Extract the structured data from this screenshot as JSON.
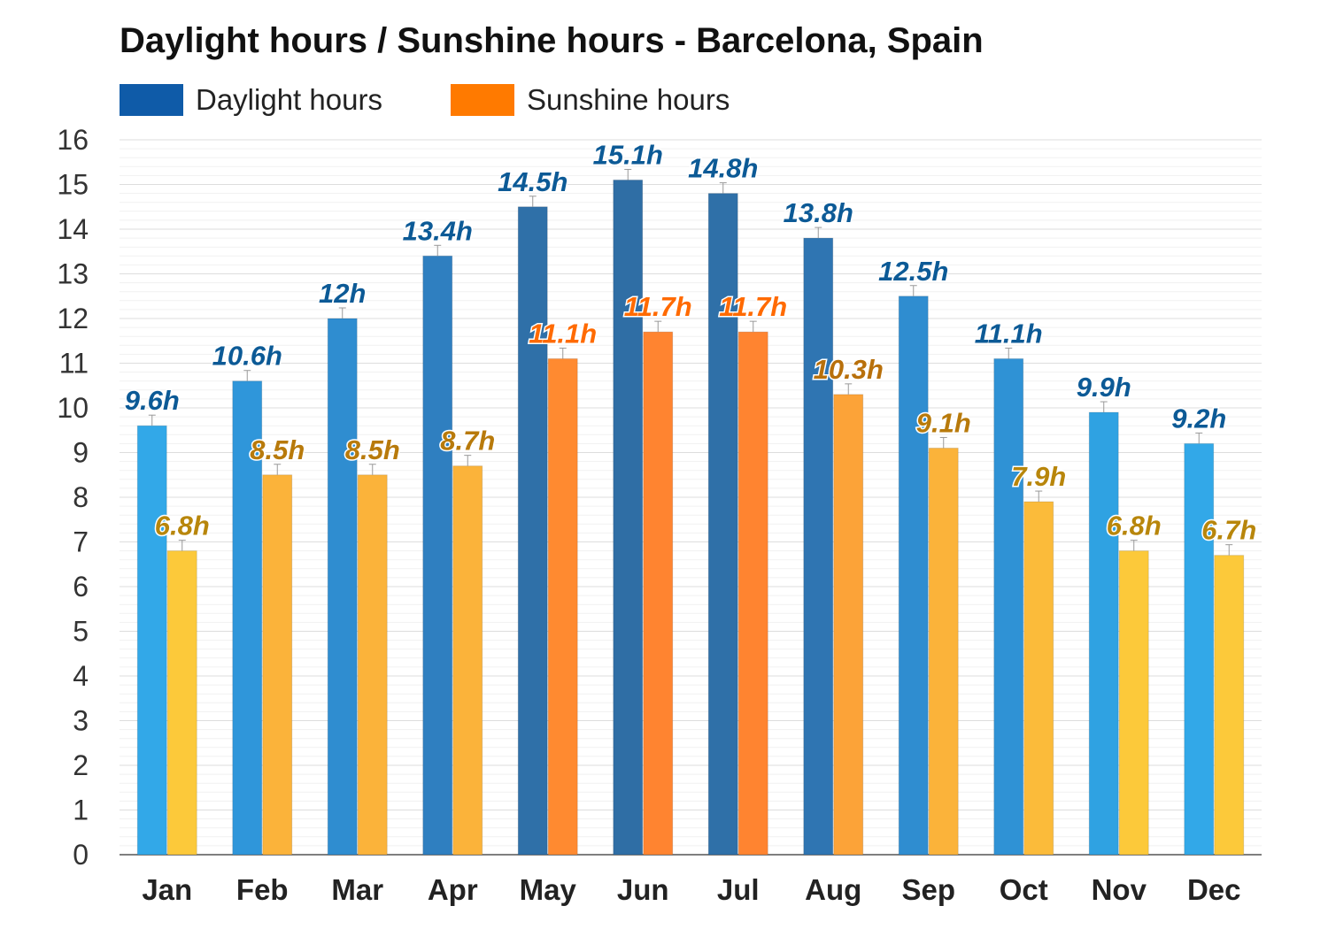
{
  "chart_data": {
    "type": "bar",
    "title": "Daylight hours / Sunshine hours - Barcelona, Spain",
    "xlabel": "",
    "ylabel": "",
    "ylim": [
      0,
      16
    ],
    "yticks": [
      0,
      1,
      2,
      3,
      4,
      5,
      6,
      7,
      8,
      9,
      10,
      11,
      12,
      13,
      14,
      15,
      16
    ],
    "categories": [
      "Jan",
      "Feb",
      "Mar",
      "Apr",
      "May",
      "Jun",
      "Jul",
      "Aug",
      "Sep",
      "Oct",
      "Nov",
      "Dec"
    ],
    "series": [
      {
        "name": "Daylight hours",
        "values": [
          9.6,
          10.6,
          12,
          13.4,
          14.5,
          15.1,
          14.8,
          13.8,
          12.5,
          11.1,
          9.9,
          9.2
        ],
        "labels": [
          "9.6h",
          "10.6h",
          "12h",
          "13.4h",
          "14.5h",
          "15.1h",
          "14.8h",
          "13.8h",
          "12.5h",
          "11.1h",
          "9.9h",
          "9.2h"
        ],
        "legend_color": "#0f5ba8",
        "colors": [
          "#32a8e8",
          "#2f96da",
          "#2f8dd0",
          "#2f7fc0",
          "#2f70a8",
          "#2f6ea5",
          "#2f70a8",
          "#2f75b2",
          "#2f8dd0",
          "#2f92d5",
          "#2fa2e2",
          "#32a8e8"
        ],
        "label_color": "#0c5a96"
      },
      {
        "name": "Sunshine hours",
        "values": [
          6.8,
          8.5,
          8.5,
          8.7,
          11.1,
          11.7,
          11.7,
          10.3,
          9.1,
          7.9,
          6.8,
          6.7
        ],
        "labels": [
          "6.8h",
          "8.5h",
          "8.5h",
          "8.7h",
          "11.1h",
          "11.7h",
          "11.7h",
          "10.3h",
          "9.1h",
          "7.9h",
          "6.8h",
          "6.7h"
        ],
        "legend_color": "#ff7a00",
        "colors": [
          "#fcc93a",
          "#fbb33a",
          "#fbb33a",
          "#fbb33a",
          "#ff8a30",
          "#ff8430",
          "#ff8430",
          "#fca338",
          "#fbb33a",
          "#fbbb3a",
          "#fcc93a",
          "#fcc93a"
        ],
        "label_colors": [
          "#b8860b",
          "#b87a0b",
          "#b87a0b",
          "#b87a0b",
          "#ff6a00",
          "#ff6a00",
          "#ff6a00",
          "#b8700b",
          "#b87a0b",
          "#b8860b",
          "#b8860b",
          "#b8860b"
        ]
      }
    ],
    "grid": true,
    "legend_position": "top-left"
  }
}
